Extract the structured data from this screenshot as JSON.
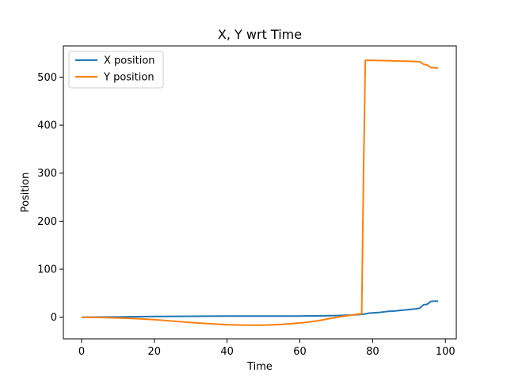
{
  "chart_data": {
    "type": "line",
    "title": "X, Y wrt Time",
    "xlabel": "Time",
    "ylabel": "Position",
    "xlim": [
      -5,
      103
    ],
    "ylim": [
      -45,
      565
    ],
    "xticks": [
      0,
      20,
      40,
      60,
      80,
      100
    ],
    "yticks": [
      0,
      100,
      200,
      300,
      400,
      500
    ],
    "grid": false,
    "legend_position": "top-left",
    "series": [
      {
        "name": "X position",
        "color": "#1f77b4",
        "points": [
          [
            0,
            0
          ],
          [
            10,
            0.5
          ],
          [
            20,
            1.5
          ],
          [
            30,
            2
          ],
          [
            40,
            2.5
          ],
          [
            50,
            2.3
          ],
          [
            60,
            2.5
          ],
          [
            65,
            2.8
          ],
          [
            70,
            3.5
          ],
          [
            74,
            4.5
          ],
          [
            77,
            6
          ],
          [
            78,
            7
          ],
          [
            79,
            8.5
          ],
          [
            80,
            9
          ],
          [
            82,
            10
          ],
          [
            84,
            12
          ],
          [
            86,
            13
          ],
          [
            88,
            14.5
          ],
          [
            90,
            16
          ],
          [
            92,
            17.5
          ],
          [
            93,
            19
          ],
          [
            94,
            26
          ],
          [
            95,
            27
          ],
          [
            96,
            33
          ],
          [
            97,
            33.5
          ],
          [
            98,
            33.5
          ]
        ]
      },
      {
        "name": "Y position",
        "color": "#ff7f0e",
        "points": [
          [
            0,
            0
          ],
          [
            5,
            -0.5
          ],
          [
            10,
            -1.5
          ],
          [
            15,
            -3
          ],
          [
            20,
            -5
          ],
          [
            25,
            -8
          ],
          [
            30,
            -11
          ],
          [
            35,
            -13.5
          ],
          [
            40,
            -15.5
          ],
          [
            45,
            -16.5
          ],
          [
            50,
            -16.5
          ],
          [
            55,
            -15
          ],
          [
            60,
            -12
          ],
          [
            63,
            -9.5
          ],
          [
            66,
            -6
          ],
          [
            68,
            -3
          ],
          [
            70,
            -0.5
          ],
          [
            72,
            2
          ],
          [
            74,
            4
          ],
          [
            76,
            6.5
          ],
          [
            77,
            7
          ],
          [
            77.5,
            300
          ],
          [
            78,
            535
          ],
          [
            80,
            535
          ],
          [
            85,
            534
          ],
          [
            90,
            533
          ],
          [
            93,
            532
          ],
          [
            94,
            527
          ],
          [
            95,
            525
          ],
          [
            96,
            520
          ],
          [
            97,
            519.5
          ],
          [
            98,
            519
          ]
        ]
      }
    ]
  }
}
